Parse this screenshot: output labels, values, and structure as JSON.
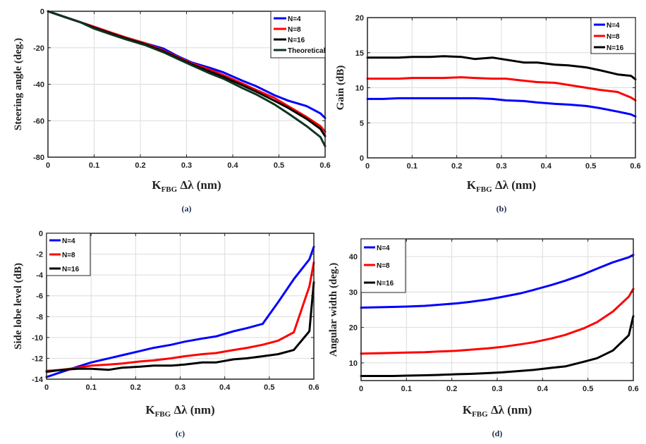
{
  "chart_data": [
    {
      "id": "a",
      "type": "line",
      "caption": "(a)",
      "xlabel": "K_FBG Δλ (nm)",
      "xlabel_main": "K",
      "xlabel_sub": "FBG",
      "xlabel_rest": " Δλ (nm)",
      "ylabel": "Steering angle (deg.)",
      "xlim": [
        0,
        0.6
      ],
      "ylim": [
        -80,
        0
      ],
      "xticks": [
        0,
        0.1,
        0.2,
        0.3,
        0.4,
        0.5,
        0.6
      ],
      "xtick_labels": [
        "0",
        "0.1",
        "0.2",
        "0.3",
        "0.4",
        "0.5",
        "0.6"
      ],
      "yticks": [
        -80,
        -60,
        -40,
        -20,
        0
      ],
      "ytick_labels": [
        "-80",
        "-60",
        "-40",
        "-20",
        "0"
      ],
      "grid": true,
      "legend": "top-right",
      "series": [
        {
          "name": "N=4",
          "color": "#0000ff",
          "x": [
            0,
            0.035,
            0.07,
            0.1,
            0.14,
            0.17,
            0.21,
            0.25,
            0.28,
            0.31,
            0.35,
            0.38,
            0.42,
            0.45,
            0.49,
            0.52,
            0.56,
            0.59,
            0.6
          ],
          "y": [
            0,
            -3,
            -6,
            -8.5,
            -12,
            -14.5,
            -17.5,
            -20.5,
            -24.5,
            -28,
            -31,
            -33.5,
            -38,
            -41,
            -46,
            -49,
            -52,
            -56,
            -58.5
          ]
        },
        {
          "name": "N=8",
          "color": "#ff0000",
          "x": [
            0,
            0.035,
            0.07,
            0.1,
            0.14,
            0.17,
            0.21,
            0.25,
            0.28,
            0.31,
            0.35,
            0.38,
            0.42,
            0.45,
            0.49,
            0.52,
            0.56,
            0.59,
            0.6
          ],
          "y": [
            0,
            -3,
            -6,
            -8.5,
            -12,
            -14.5,
            -17.5,
            -21.5,
            -25,
            -28.5,
            -32,
            -35,
            -39.5,
            -43,
            -47.5,
            -52,
            -58,
            -63,
            -66
          ]
        },
        {
          "name": "N=16",
          "color": "#000000",
          "x": [
            0,
            0.035,
            0.07,
            0.1,
            0.14,
            0.17,
            0.21,
            0.25,
            0.28,
            0.31,
            0.35,
            0.38,
            0.42,
            0.45,
            0.49,
            0.52,
            0.56,
            0.59,
            0.6
          ],
          "y": [
            0,
            -3,
            -6,
            -9,
            -12.5,
            -15,
            -18,
            -22,
            -25.5,
            -29,
            -33,
            -36,
            -40.5,
            -44,
            -49,
            -53,
            -59,
            -64.5,
            -68.5
          ]
        },
        {
          "name": "Theoretical",
          "color": "#0d3320",
          "x": [
            0,
            0.035,
            0.07,
            0.1,
            0.14,
            0.17,
            0.21,
            0.25,
            0.28,
            0.31,
            0.35,
            0.38,
            0.42,
            0.45,
            0.49,
            0.52,
            0.56,
            0.59,
            0.6
          ],
          "y": [
            0,
            -3,
            -6,
            -9.5,
            -13,
            -15.5,
            -18.5,
            -22.5,
            -26,
            -29.5,
            -34,
            -37,
            -42,
            -45.5,
            -51,
            -56,
            -63,
            -69,
            -74
          ]
        }
      ]
    },
    {
      "id": "b",
      "type": "line",
      "caption": "(b)",
      "xlabel": "K_FBG Δλ (nm)",
      "xlabel_main": "K",
      "xlabel_sub": "FBG",
      "xlabel_rest": " Δλ (nm)",
      "ylabel": "Gain (dB)",
      "xlim": [
        0,
        0.6
      ],
      "ylim": [
        0,
        20
      ],
      "xticks": [
        0,
        0.1,
        0.2,
        0.3,
        0.4,
        0.5,
        0.6
      ],
      "xtick_labels": [
        "0",
        "0.1",
        "0.2",
        "0.3",
        "0.4",
        "0.5",
        "0.6"
      ],
      "yticks": [
        0,
        5,
        10,
        15,
        20
      ],
      "ytick_labels": [
        "0",
        "5",
        "10",
        "15",
        "20"
      ],
      "grid": true,
      "legend": "top-right",
      "series": [
        {
          "name": "N=4",
          "color": "#0000ff",
          "x": [
            0,
            0.035,
            0.07,
            0.1,
            0.14,
            0.17,
            0.21,
            0.24,
            0.28,
            0.31,
            0.35,
            0.38,
            0.42,
            0.45,
            0.49,
            0.52,
            0.56,
            0.59,
            0.6
          ],
          "y": [
            8.4,
            8.4,
            8.5,
            8.5,
            8.5,
            8.5,
            8.5,
            8.5,
            8.4,
            8.2,
            8.1,
            7.9,
            7.7,
            7.6,
            7.4,
            7.1,
            6.6,
            6.2,
            5.9
          ]
        },
        {
          "name": "N=8",
          "color": "#ff0000",
          "x": [
            0,
            0.035,
            0.07,
            0.1,
            0.14,
            0.17,
            0.21,
            0.24,
            0.28,
            0.31,
            0.35,
            0.38,
            0.42,
            0.45,
            0.49,
            0.52,
            0.56,
            0.59,
            0.6
          ],
          "y": [
            11.3,
            11.3,
            11.3,
            11.4,
            11.4,
            11.4,
            11.5,
            11.4,
            11.3,
            11.3,
            11.0,
            10.8,
            10.7,
            10.4,
            10.0,
            9.7,
            9.4,
            8.6,
            8.2
          ]
        },
        {
          "name": "N=16",
          "color": "#000000",
          "x": [
            0,
            0.035,
            0.07,
            0.1,
            0.14,
            0.17,
            0.21,
            0.24,
            0.28,
            0.31,
            0.35,
            0.38,
            0.42,
            0.45,
            0.49,
            0.52,
            0.56,
            0.59,
            0.6
          ],
          "y": [
            14.3,
            14.3,
            14.3,
            14.4,
            14.4,
            14.5,
            14.4,
            14.1,
            14.3,
            14.0,
            13.6,
            13.6,
            13.3,
            13.2,
            12.9,
            12.5,
            11.9,
            11.7,
            11.2
          ]
        }
      ]
    },
    {
      "id": "c",
      "type": "line",
      "caption": "(c)",
      "xlabel": "K_FBG Δλ (nm)",
      "xlabel_main": "K",
      "xlabel_sub": "FBG",
      "xlabel_rest": " Δλ (nm)",
      "ylabel": "Side lobe level (dB)",
      "xlim": [
        0,
        0.6
      ],
      "ylim": [
        -14,
        0
      ],
      "xticks": [
        0,
        0.1,
        0.2,
        0.3,
        0.4,
        0.5,
        0.6
      ],
      "xtick_labels": [
        "0",
        "0.1",
        "0.2",
        "0.3",
        "0.4",
        "0.5",
        "0.6"
      ],
      "yticks": [
        -14,
        -12,
        -10,
        -8,
        -6,
        -4,
        -2,
        0
      ],
      "ytick_labels": [
        "-14",
        "-12",
        "-10",
        "-8",
        "-6",
        "-4",
        "-2",
        "0"
      ],
      "grid": true,
      "legend": "top-left",
      "series": [
        {
          "name": "N=4",
          "color": "#0000ff",
          "x": [
            0,
            0.035,
            0.07,
            0.1,
            0.14,
            0.17,
            0.21,
            0.24,
            0.28,
            0.31,
            0.35,
            0.38,
            0.42,
            0.45,
            0.485,
            0.52,
            0.555,
            0.59,
            0.6
          ],
          "y": [
            -13.8,
            -13.3,
            -12.8,
            -12.4,
            -12.0,
            -11.7,
            -11.3,
            -11.0,
            -10.7,
            -10.4,
            -10.1,
            -9.9,
            -9.4,
            -9.1,
            -8.7,
            -6.6,
            -4.4,
            -2.5,
            -1.3
          ]
        },
        {
          "name": "N=8",
          "color": "#ff0000",
          "x": [
            0,
            0.035,
            0.07,
            0.1,
            0.14,
            0.17,
            0.21,
            0.24,
            0.28,
            0.31,
            0.35,
            0.38,
            0.42,
            0.45,
            0.485,
            0.52,
            0.555,
            0.59,
            0.6
          ],
          "y": [
            -13.2,
            -13.1,
            -12.9,
            -12.7,
            -12.6,
            -12.5,
            -12.3,
            -12.2,
            -12.0,
            -11.8,
            -11.6,
            -11.5,
            -11.2,
            -11.0,
            -10.7,
            -10.3,
            -9.5,
            -5.1,
            -2.8
          ]
        },
        {
          "name": "N=16",
          "color": "#000000",
          "x": [
            0,
            0.035,
            0.07,
            0.1,
            0.14,
            0.17,
            0.21,
            0.24,
            0.28,
            0.31,
            0.35,
            0.38,
            0.42,
            0.45,
            0.485,
            0.52,
            0.555,
            0.59,
            0.6
          ],
          "y": [
            -13.3,
            -13.1,
            -13.0,
            -13.0,
            -13.1,
            -12.9,
            -12.8,
            -12.7,
            -12.7,
            -12.6,
            -12.4,
            -12.4,
            -12.1,
            -12.0,
            -11.8,
            -11.6,
            -11.2,
            -9.4,
            -4.7
          ]
        }
      ]
    },
    {
      "id": "d",
      "type": "line",
      "caption": "(d)",
      "xlabel": "K_FBG Δλ (nm)",
      "xlabel_main": "K",
      "xlabel_sub": "FBG",
      "xlabel_rest": " Δλ (nm)",
      "ylabel": "Angular width (deg.)",
      "xlim": [
        0,
        0.6
      ],
      "ylim": [
        5,
        45
      ],
      "xticks": [
        0,
        0.1,
        0.2,
        0.3,
        0.4,
        0.5,
        0.6
      ],
      "xtick_labels": [
        "0",
        "0.1",
        "0.2",
        "0.3",
        "0.4",
        "0.5",
        "0.6"
      ],
      "yticks": [
        10,
        20,
        30,
        40
      ],
      "ytick_labels": [
        "10",
        "20",
        "30",
        "40"
      ],
      "grid": true,
      "legend": "top-left",
      "series": [
        {
          "name": "N=4",
          "color": "#0000ff",
          "x": [
            0,
            0.035,
            0.07,
            0.1,
            0.14,
            0.17,
            0.21,
            0.24,
            0.28,
            0.31,
            0.35,
            0.38,
            0.42,
            0.45,
            0.49,
            0.52,
            0.555,
            0.59,
            0.6
          ],
          "y": [
            25.6,
            25.7,
            25.8,
            25.9,
            26.1,
            26.4,
            26.8,
            27.2,
            27.9,
            28.6,
            29.6,
            30.6,
            32.0,
            33.2,
            35.0,
            36.6,
            38.4,
            39.8,
            40.5
          ]
        },
        {
          "name": "N=8",
          "color": "#ff0000",
          "x": [
            0,
            0.035,
            0.07,
            0.1,
            0.14,
            0.17,
            0.21,
            0.24,
            0.28,
            0.31,
            0.35,
            0.38,
            0.42,
            0.45,
            0.49,
            0.52,
            0.555,
            0.59,
            0.6
          ],
          "y": [
            12.6,
            12.7,
            12.8,
            12.9,
            13.0,
            13.2,
            13.4,
            13.7,
            14.1,
            14.5,
            15.2,
            15.8,
            16.9,
            17.9,
            19.7,
            21.5,
            24.5,
            28.7,
            30.9
          ]
        },
        {
          "name": "N=16",
          "color": "#000000",
          "x": [
            0,
            0.035,
            0.07,
            0.1,
            0.14,
            0.17,
            0.21,
            0.24,
            0.28,
            0.31,
            0.35,
            0.38,
            0.42,
            0.45,
            0.49,
            0.52,
            0.555,
            0.59,
            0.6
          ],
          "y": [
            6.3,
            6.3,
            6.3,
            6.4,
            6.5,
            6.6,
            6.8,
            6.9,
            7.1,
            7.3,
            7.7,
            8.0,
            8.6,
            9.0,
            10.3,
            11.3,
            13.5,
            17.8,
            23.2
          ]
        }
      ]
    }
  ]
}
